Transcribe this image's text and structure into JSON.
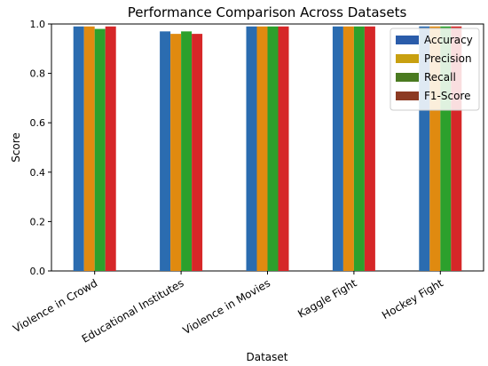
{
  "chart_data": {
    "type": "bar",
    "title": "Performance Comparison Across Datasets",
    "xlabel": "Dataset",
    "ylabel": "Score",
    "ylim": [
      0,
      1.0
    ],
    "yticks": [
      "0.0",
      "0.2",
      "0.4",
      "0.6",
      "0.8",
      "1.0"
    ],
    "grid": false,
    "legend_position": "top-right",
    "categories": [
      "Violence in Crowd",
      "Educational Institutes",
      "Violence in Movies",
      "Kaggle Fight",
      "Hockey Fight"
    ],
    "series": [
      {
        "name": "Accuracy",
        "color": "#2b6cb0",
        "values": [
          0.99,
          0.97,
          0.99,
          0.99,
          0.99
        ]
      },
      {
        "name": "Precision",
        "color": "#e08a10",
        "values": [
          0.99,
          0.96,
          0.99,
          0.99,
          0.99
        ]
      },
      {
        "name": "Recall",
        "color": "#2ca02c",
        "values": [
          0.98,
          0.97,
          0.99,
          0.99,
          0.99
        ]
      },
      {
        "name": "F1-Score",
        "color": "#d62728",
        "values": [
          0.99,
          0.96,
          0.99,
          0.99,
          0.99
        ]
      }
    ],
    "legend_swatch_colors": [
      "#2a5caa",
      "#c8a010",
      "#4a7a20",
      "#8c3a22"
    ]
  }
}
